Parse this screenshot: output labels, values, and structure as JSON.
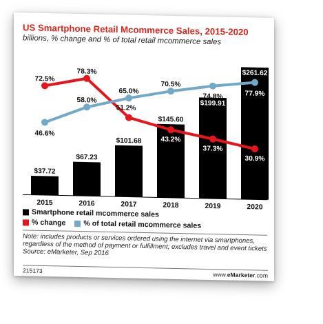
{
  "chart_data": {
    "type": "bar+line",
    "title": "US Smartphone Retail Mcommerce Sales, 2015-2020",
    "subtitle": "billions, % change and % of total retail mcommerce sales",
    "categories": [
      "2015",
      "2016",
      "2017",
      "2018",
      "2019",
      "2020"
    ],
    "series": [
      {
        "name": "Smartphone retail mcommerce sales",
        "kind": "bar",
        "color": "#000000",
        "values": [
          37.72,
          67.23,
          101.68,
          145.6,
          199.91,
          261.62
        ],
        "labels": [
          "$37.72",
          "$67.23",
          "$101.68",
          "$145.60",
          "$199.91",
          "$261.62"
        ]
      },
      {
        "name": "% change",
        "kind": "line",
        "color": "#e8141c",
        "values": [
          72.5,
          78.3,
          51.2,
          43.2,
          37.3,
          30.9
        ],
        "labels": [
          "72.5%",
          "78.3%",
          "51.2%",
          "43.2%",
          "37.3%",
          "30.9%"
        ]
      },
      {
        "name": "% of total retail mcommerce sales",
        "kind": "line",
        "color": "#72a9c9",
        "values": [
          46.6,
          58.0,
          65.0,
          70.5,
          74.8,
          77.9
        ],
        "labels": [
          "46.6%",
          "58.0%",
          "65.0%",
          "70.5%",
          "74.8%",
          "77.9%"
        ]
      }
    ],
    "bar_ylim": [
      0,
      265
    ],
    "pct_ylim": [
      0,
      100
    ],
    "legend_position": "bottom",
    "grid": false
  },
  "note": "Note: includes products or services ordered using the internet via smartphones, regardless of the method of payment or fulfillment; excludes travel and event tickets",
  "source": "Source: eMarketer, Sep 2016",
  "footer": {
    "id": "215173",
    "brand_prefix": "www.",
    "brand_name": "eMarketer",
    "brand_suffix": ".com"
  }
}
